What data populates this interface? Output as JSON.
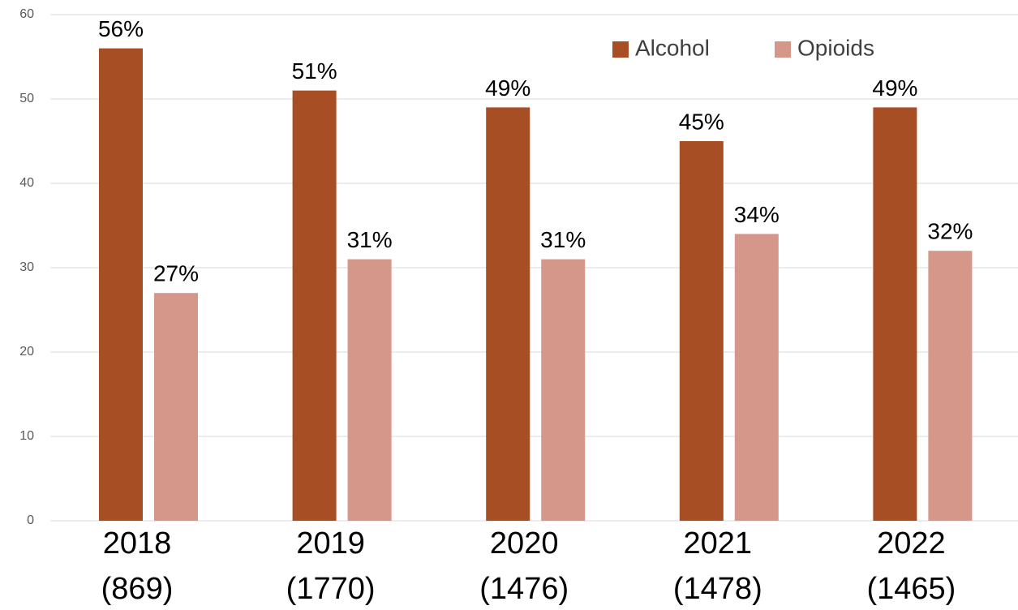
{
  "chart_data": {
    "type": "bar",
    "categories": [
      "2018 (869)",
      "2019 (1770)",
      "2020 (1476)",
      "2021 (1478)",
      "2022 (1465)"
    ],
    "series": [
      {
        "name": "Alcohol",
        "color": "#a84e25",
        "values": [
          56,
          51,
          49,
          45,
          49
        ],
        "value_labels": [
          "56%",
          "51%",
          "49%",
          "45%",
          "49%"
        ]
      },
      {
        "name": "Opioids",
        "color": "#d4978a",
        "values": [
          27,
          31,
          31,
          34,
          32
        ],
        "value_labels": [
          "27%",
          "31%",
          "31%",
          "34%",
          "32%"
        ]
      }
    ],
    "ylim": [
      0,
      60
    ],
    "yticks": [
      0,
      10,
      20,
      30,
      40,
      50,
      60
    ],
    "grid": true,
    "legend": "upper right"
  }
}
